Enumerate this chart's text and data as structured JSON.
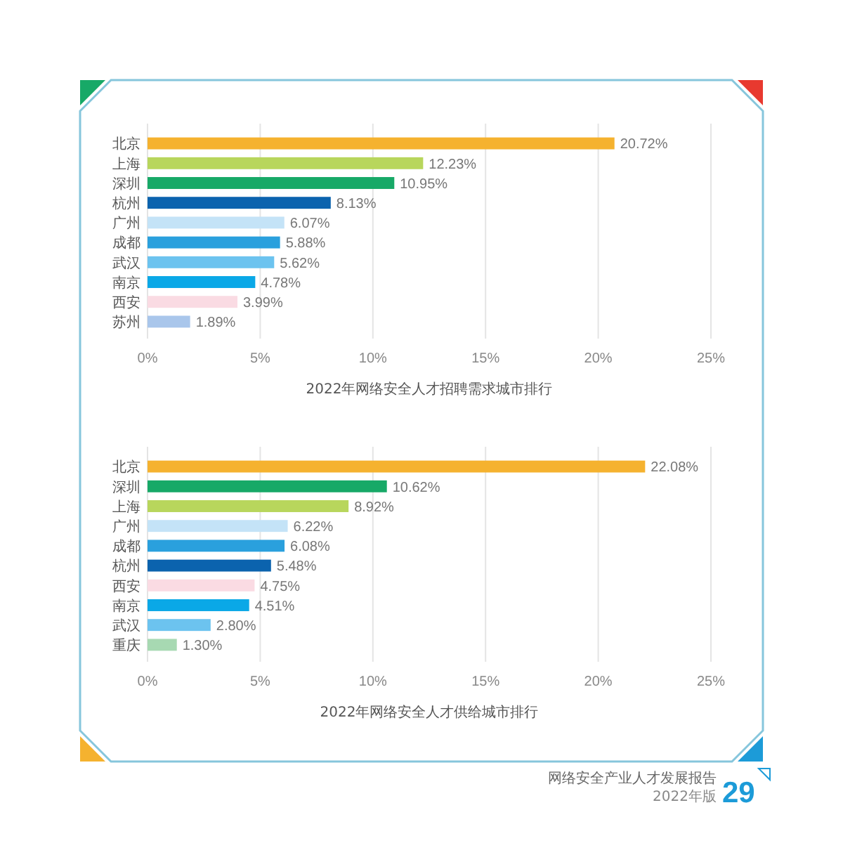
{
  "chart_data": [
    {
      "type": "bar",
      "orientation": "horizontal",
      "title": "2022年网络安全人才招聘需求城市排行",
      "categories": [
        "北京",
        "上海",
        "深圳",
        "杭州",
        "广州",
        "成都",
        "武汉",
        "南京",
        "西安",
        "苏州"
      ],
      "values": [
        20.72,
        12.23,
        10.95,
        8.13,
        6.07,
        5.88,
        5.62,
        4.78,
        3.99,
        1.89
      ],
      "colors": [
        "#f5b22f",
        "#b8d65c",
        "#17a967",
        "#0b63ae",
        "#c4e3f7",
        "#2aa0dd",
        "#6cc3ef",
        "#0aa8e7",
        "#fadbe3",
        "#a9c6eb"
      ],
      "value_labels": [
        "20.72%",
        "12.23%",
        "10.95%",
        "8.13%",
        "6.07%",
        "5.88%",
        "5.62%",
        "4.78%",
        "3.99%",
        "1.89%"
      ],
      "xlim": [
        0,
        25
      ],
      "xticks": [
        {
          "value": 0,
          "label": "0%"
        },
        {
          "value": 5,
          "label": "5%"
        },
        {
          "value": 10,
          "label": "10%"
        },
        {
          "value": 15,
          "label": "15%"
        },
        {
          "value": 20,
          "label": "20%"
        },
        {
          "value": 25,
          "label": "25%"
        }
      ],
      "grid": "x"
    },
    {
      "type": "bar",
      "orientation": "horizontal",
      "title": "2022年网络安全人才供给城市排行",
      "categories": [
        "北京",
        "深圳",
        "上海",
        "广州",
        "成都",
        "杭州",
        "西安",
        "南京",
        "武汉",
        "重庆"
      ],
      "values": [
        22.08,
        10.62,
        8.92,
        6.22,
        6.08,
        5.48,
        4.75,
        4.51,
        2.8,
        1.3
      ],
      "colors": [
        "#f5b22f",
        "#17a967",
        "#b8d65c",
        "#c4e3f7",
        "#2aa0dd",
        "#0b63ae",
        "#fadbe3",
        "#0aa8e7",
        "#6cc3ef",
        "#a7d9b2"
      ],
      "value_labels": [
        "22.08%",
        "10.62%",
        "8.92%",
        "6.22%",
        "6.08%",
        "5.48%",
        "4.75%",
        "4.51%",
        "2.80%",
        "1.30%"
      ],
      "xlim": [
        0,
        25
      ],
      "xticks": [
        {
          "value": 0,
          "label": "0%"
        },
        {
          "value": 5,
          "label": "5%"
        },
        {
          "value": 10,
          "label": "10%"
        },
        {
          "value": 15,
          "label": "15%"
        },
        {
          "value": 20,
          "label": "20%"
        },
        {
          "value": 25,
          "label": "25%"
        }
      ],
      "grid": "x",
      "annotations": [
        "网络安全产业人才发展报告",
        "2022年版",
        "29"
      ]
    }
  ]
}
